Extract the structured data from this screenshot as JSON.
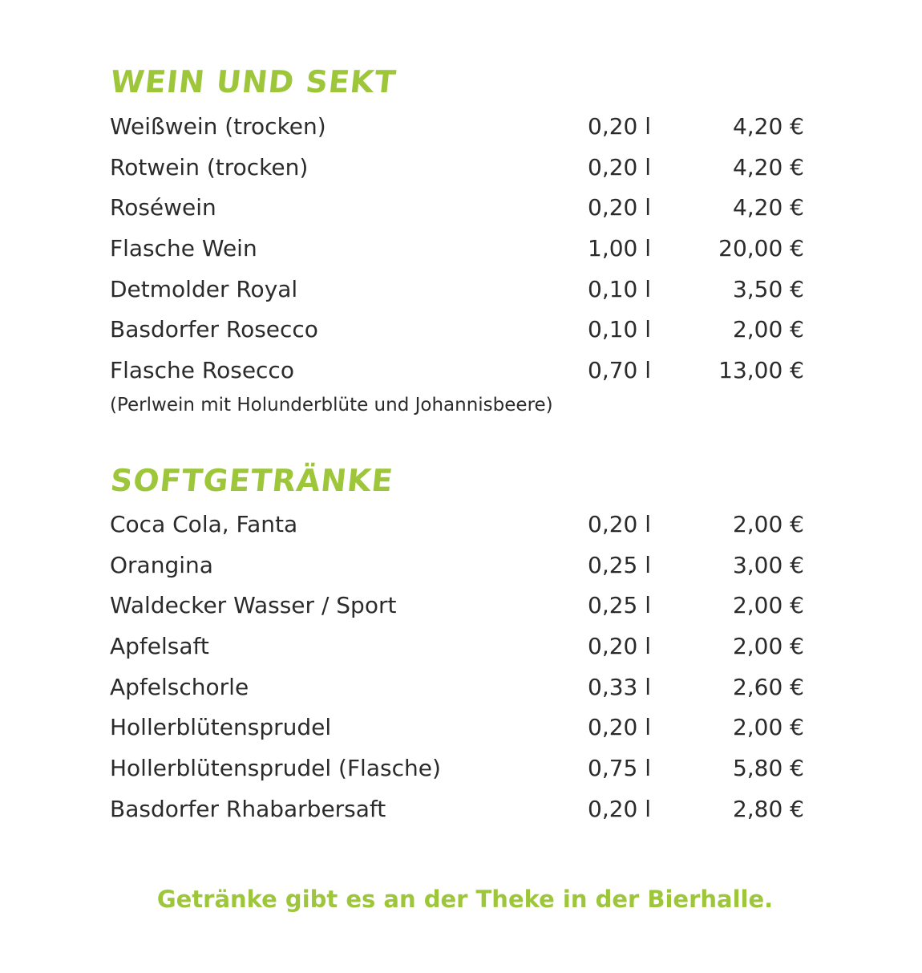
{
  "wine_section": {
    "title": "Wein und Sekt",
    "items": [
      {
        "name": "Weißwein (trocken)",
        "volume": "0,20 l",
        "price": "4,20 €"
      },
      {
        "name": "Rotwein (trocken)",
        "volume": "0,20 l",
        "price": "4,20 €"
      },
      {
        "name": "Roséwein",
        "volume": "0,20 l",
        "price": "4,20 €"
      },
      {
        "name": "Flasche Wein",
        "volume": "1,00 l",
        "price": "20,00 €"
      },
      {
        "name": "Detmolder Royal",
        "volume": "0,10 l",
        "price": "3,50 €"
      },
      {
        "name": "Basdorfer Rosecco",
        "volume": "0,10 l",
        "price": "2,00 €"
      },
      {
        "name": "Flasche Rosecco",
        "volume": "0,70 l",
        "price": "13,00 €"
      }
    ],
    "note": "(Perlwein mit Holunderblüte und Johannisbeere)"
  },
  "soft_section": {
    "title": "Softgetränke",
    "items": [
      {
        "name": "Coca Cola, Fanta",
        "volume": "0,20 l",
        "price": "2,00 €"
      },
      {
        "name": "Orangina",
        "volume": "0,25 l",
        "price": "3,00 €"
      },
      {
        "name": "Waldecker Wasser / Sport",
        "volume": "0,25 l",
        "price": "2,00 €"
      },
      {
        "name": "Apfelsaft",
        "volume": "0,20 l",
        "price": "2,00 €"
      },
      {
        "name": "Apfelschorle",
        "volume": "0,33 l",
        "price": "2,60 €"
      },
      {
        "name": "Hollerblütensprudel",
        "volume": "0,20 l",
        "price": "2,00 €"
      },
      {
        "name": "Hollerblütensprudel (Flasche)",
        "volume": "0,75 l",
        "price": "5,80 €"
      },
      {
        "name": "Basdorfer Rhabarbersaft",
        "volume": "0,20 l",
        "price": "2,80 €"
      }
    ]
  },
  "footer": {
    "text": "Getränke gibt es an der Theke in der Bierhalle."
  },
  "colors": {
    "accent": "#9ec63b",
    "text": "#2b2b2b",
    "background": "#ffffff"
  }
}
